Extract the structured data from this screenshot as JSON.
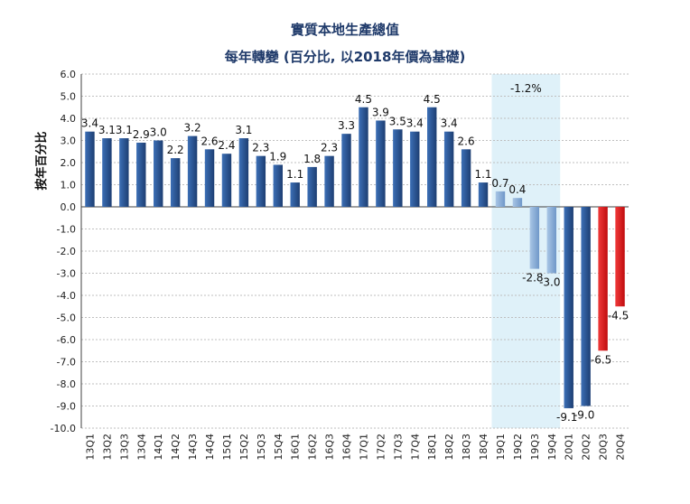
{
  "chart_data": {
    "type": "bar",
    "title": "實質本地生產總值",
    "subtitle_prefix": "每年轉變 (百分比, 以",
    "subtitle_year": "2018",
    "subtitle_suffix": "年價為基礎)",
    "ylabel": "按年百分比",
    "ylim": [
      -10.0,
      6.0
    ],
    "ytick_step": 1.0,
    "grid": true,
    "highlight_label": "-1.2%",
    "highlight_range": [
      "19Q1",
      "19Q4"
    ],
    "categories": [
      "13Q1",
      "13Q2",
      "13Q3",
      "13Q4",
      "14Q1",
      "14Q2",
      "14Q3",
      "14Q4",
      "15Q1",
      "15Q2",
      "15Q3",
      "15Q4",
      "16Q1",
      "16Q2",
      "16Q3",
      "16Q4",
      "17Q1",
      "17Q2",
      "17Q3",
      "17Q4",
      "18Q1",
      "18Q2",
      "18Q3",
      "18Q4",
      "19Q1",
      "19Q2",
      "19Q3",
      "19Q4",
      "20Q1",
      "20Q2",
      "20Q3",
      "20Q4"
    ],
    "values": [
      3.4,
      3.1,
      3.1,
      2.9,
      3.0,
      2.2,
      3.2,
      2.6,
      2.4,
      3.1,
      2.3,
      1.9,
      1.1,
      1.8,
      2.3,
      3.3,
      4.5,
      3.9,
      3.5,
      3.4,
      4.5,
      3.4,
      2.6,
      1.1,
      0.7,
      0.4,
      -2.8,
      -3.0,
      -9.1,
      -9.0,
      -6.5,
      -4.5
    ],
    "value_labels": [
      "3.4",
      "3.1",
      "3.1",
      "2.9",
      "3.0",
      "2.2",
      "3.2",
      "2.6",
      "2.4",
      "3.1",
      "2.3",
      "1.9",
      "1.1",
      "1.8",
      "2.3",
      "3.3",
      "4.5",
      "3.9",
      "3.5",
      "3.4",
      "4.5",
      "3.4",
      "2.6",
      "1.1",
      "0.7",
      "0.4",
      "-2.8",
      "-3.0",
      "-9.1",
      "-9.0",
      "-6.5",
      "-4.5"
    ],
    "bar_kind": [
      "actual",
      "actual",
      "actual",
      "actual",
      "actual",
      "actual",
      "actual",
      "actual",
      "actual",
      "actual",
      "actual",
      "actual",
      "actual",
      "actual",
      "actual",
      "actual",
      "actual",
      "actual",
      "actual",
      "actual",
      "actual",
      "actual",
      "actual",
      "actual",
      "light",
      "light",
      "light",
      "light",
      "actual",
      "actual",
      "forecast",
      "forecast"
    ],
    "colors": {
      "actual": "#2f5d9e",
      "actual_dark": "#1d3e72",
      "light": "#8db0d8",
      "forecast": "#e0191b",
      "highlight": "#dff1f9",
      "grid": "#bfbfbf",
      "axis": "#404040"
    }
  }
}
